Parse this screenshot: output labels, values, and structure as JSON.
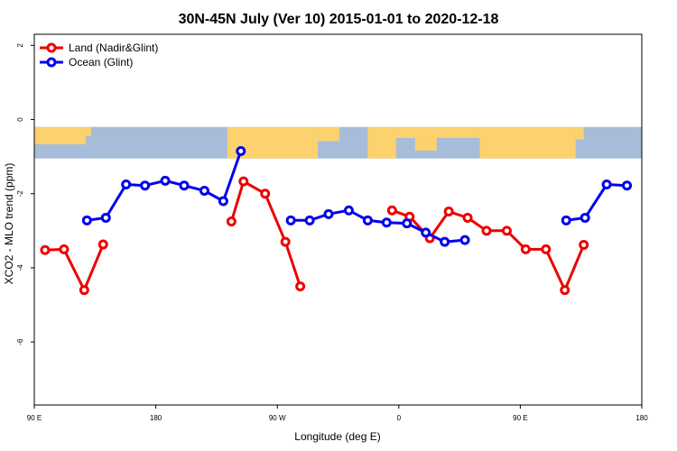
{
  "chart_data": {
    "type": "line",
    "title": "30N-45N July (Ver 10)   2015-01-01 to 2020-12-18",
    "xlabel": "Longitude (deg E)",
    "ylabel": "XCO2 - MLO trend (ppm)",
    "xlim": [
      90,
      540
    ],
    "ylim": [
      -7.7,
      2.3
    ],
    "x_ticks": [
      {
        "value": 90,
        "label": "90 E"
      },
      {
        "value": 180,
        "label": "180"
      },
      {
        "value": 270,
        "label": "90 W"
      },
      {
        "value": 360,
        "label": "0"
      },
      {
        "value": 450,
        "label": "90 E"
      },
      {
        "value": 540,
        "label": "180"
      }
    ],
    "y_ticks": [
      {
        "value": 2,
        "label": "2"
      },
      {
        "value": 0,
        "label": "0"
      },
      {
        "value": -2,
        "label": "-2"
      },
      {
        "value": -4,
        "label": "-4"
      },
      {
        "value": -6,
        "label": "-6"
      }
    ],
    "legend_position": "top-left",
    "map_band": {
      "y_top": -0.2,
      "y_bottom": -1.05,
      "ocean_color": "#a7bcd9",
      "land_color": "#fcd26e"
    },
    "series": [
      {
        "name": "Land (Nadir&Glint)",
        "color": "#ee0000",
        "segments": [
          [
            [
              98,
              -3.52
            ],
            [
              112,
              -3.5
            ],
            [
              127,
              -4.6
            ],
            [
              141,
              -3.37
            ]
          ],
          [
            [
              236,
              -2.75
            ],
            [
              245,
              -1.67
            ],
            [
              261,
              -2.0
            ],
            [
              276,
              -3.3
            ],
            [
              287,
              -4.5
            ]
          ],
          [
            [
              355,
              -2.45
            ],
            [
              368,
              -2.62
            ],
            [
              383,
              -3.2
            ],
            [
              397,
              -2.48
            ],
            [
              411,
              -2.65
            ],
            [
              425,
              -3.0
            ],
            [
              440,
              -3.0
            ],
            [
              454,
              -3.5
            ],
            [
              469,
              -3.5
            ],
            [
              483,
              -4.6
            ],
            [
              497,
              -3.38
            ]
          ]
        ]
      },
      {
        "name": "Ocean (Glint)",
        "color": "#0000ee",
        "segments": [
          [
            [
              129,
              -2.72
            ],
            [
              143,
              -2.65
            ],
            [
              158,
              -1.75
            ],
            [
              172,
              -1.78
            ],
            [
              187,
              -1.65
            ],
            [
              201,
              -1.78
            ],
            [
              216,
              -1.92
            ],
            [
              230,
              -2.2
            ],
            [
              243,
              -0.85
            ]
          ],
          [
            [
              280,
              -2.72
            ],
            [
              294,
              -2.72
            ],
            [
              308,
              -2.55
            ],
            [
              323,
              -2.45
            ],
            [
              337,
              -2.72
            ],
            [
              351,
              -2.78
            ],
            [
              366,
              -2.8
            ],
            [
              380,
              -3.05
            ],
            [
              394,
              -3.3
            ],
            [
              409,
              -3.25
            ]
          ],
          [
            [
              484,
              -2.72
            ],
            [
              498,
              -2.65
            ],
            [
              514,
              -1.75
            ],
            [
              529,
              -1.78
            ]
          ]
        ]
      }
    ]
  }
}
